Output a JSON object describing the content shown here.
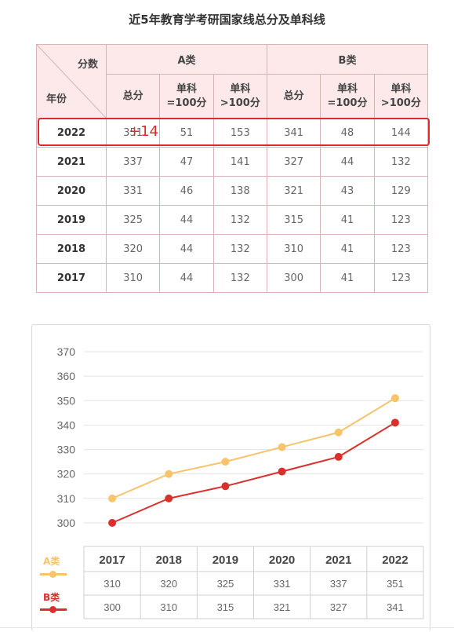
{
  "title": "近5年教育学考研国家线总分及单科线",
  "table": {
    "corner_top": "分数",
    "corner_bottom": "年份",
    "group_a": "A类",
    "group_b": "B类",
    "sub_headers": [
      "总分",
      "单科\n=100分",
      "单科\n>100分",
      "总分",
      "单科\n=100分",
      "单科\n>100分"
    ],
    "rows": [
      {
        "year": "2022",
        "cells": [
          "351",
          "51",
          "153",
          "341",
          "48",
          "144"
        ]
      },
      {
        "year": "2021",
        "cells": [
          "337",
          "47",
          "141",
          "327",
          "44",
          "132"
        ]
      },
      {
        "year": "2020",
        "cells": [
          "331",
          "46",
          "138",
          "321",
          "43",
          "129"
        ]
      },
      {
        "year": "2019",
        "cells": [
          "325",
          "44",
          "132",
          "315",
          "41",
          "123"
        ]
      },
      {
        "year": "2018",
        "cells": [
          "320",
          "44",
          "132",
          "310",
          "41",
          "123"
        ]
      },
      {
        "year": "2017",
        "cells": [
          "310",
          "44",
          "132",
          "300",
          "41",
          "123"
        ]
      }
    ],
    "annotation": "+14",
    "annotation_color": "#e02a2a"
  },
  "chart_data": {
    "type": "line",
    "x": [
      "2017",
      "2018",
      "2019",
      "2020",
      "2021",
      "2022"
    ],
    "ylim": [
      300,
      370
    ],
    "yticks": [
      300,
      310,
      320,
      330,
      340,
      350,
      360,
      370
    ],
    "grid": true,
    "series": [
      {
        "name": "A类",
        "color": "#f7c36b",
        "values": [
          310,
          320,
          325,
          331,
          337,
          351
        ]
      },
      {
        "name": "B类",
        "color": "#d9302c",
        "values": [
          300,
          310,
          315,
          321,
          327,
          341
        ]
      }
    ],
    "data_table_rows": [
      [
        "310",
        "320",
        "325",
        "331",
        "337",
        "351"
      ],
      [
        "300",
        "310",
        "315",
        "321",
        "327",
        "341"
      ]
    ]
  }
}
